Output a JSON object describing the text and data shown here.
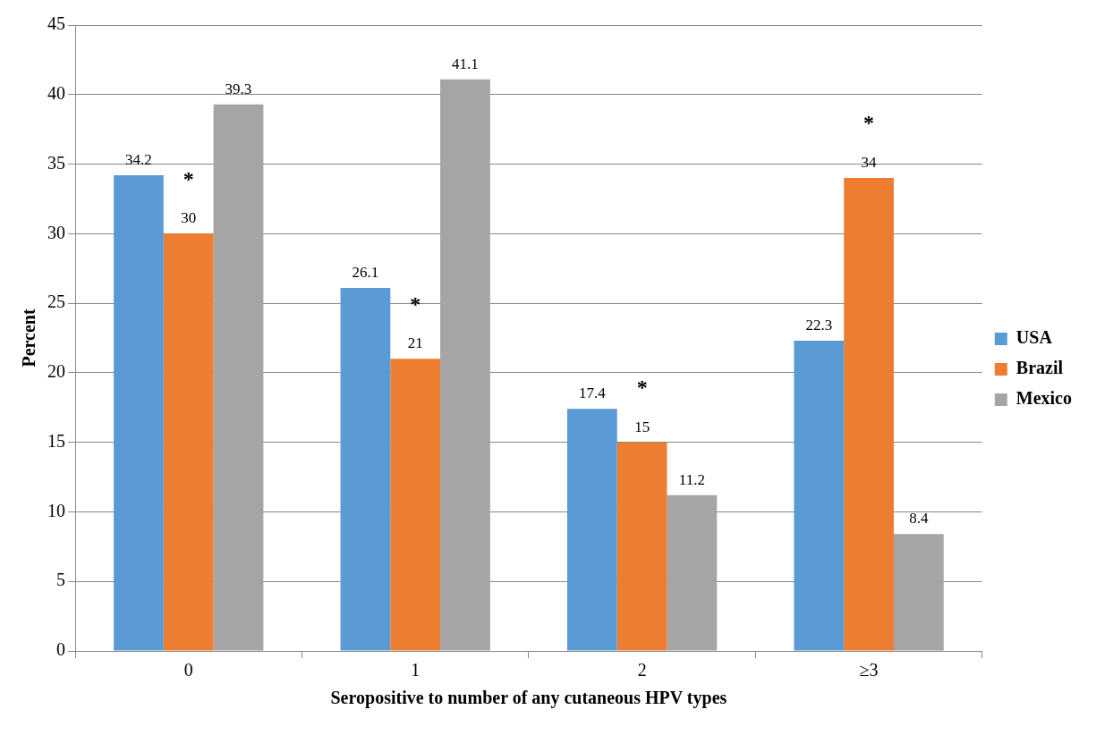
{
  "chart_data": {
    "type": "bar",
    "xlabel": "Seropositive to number of any cutaneous HPV types",
    "ylabel": "Percent",
    "categories": [
      "0",
      "1",
      "2",
      "≥3"
    ],
    "series": [
      {
        "name": "USA",
        "color": "#5b9bd5",
        "values": [
          34.2,
          26.1,
          17.4,
          22.3
        ]
      },
      {
        "name": "Brazil",
        "color": "#ed7d31",
        "values": [
          30,
          21,
          15,
          34
        ]
      },
      {
        "name": "Mexico",
        "color": "#a5a5a5",
        "values": [
          39.3,
          41.1,
          11.2,
          8.4
        ]
      }
    ],
    "ylim": [
      0,
      45
    ],
    "yticks": [
      0,
      5,
      10,
      15,
      20,
      25,
      30,
      35,
      40,
      45
    ],
    "grid": "y",
    "legend": "right",
    "data_labels": true,
    "annotations": [
      "*",
      "*",
      "*",
      "*"
    ]
  }
}
